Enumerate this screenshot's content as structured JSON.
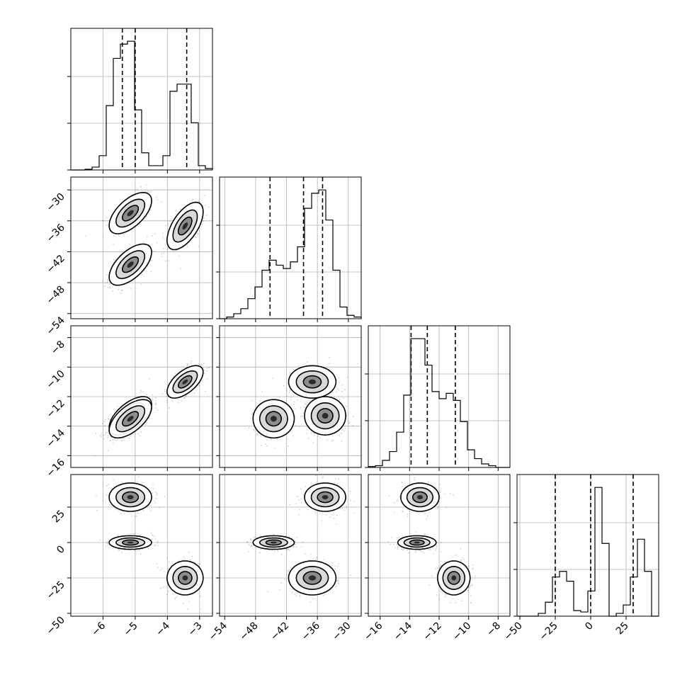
{
  "chart_data": {
    "type": "corner",
    "grid": true,
    "variables": [
      {
        "key": "p0",
        "range": [
          -7.0,
          -2.6
        ],
        "ticks": [
          -6,
          -5,
          -4,
          -3
        ],
        "tick_labels": [
          "−6",
          "−5",
          "−4",
          "−3"
        ],
        "hist_x": [
          -7.0,
          -6.78,
          -6.56,
          -6.34,
          -6.12,
          -5.9,
          -5.68,
          -5.46,
          -5.24,
          -5.02,
          -4.8,
          -4.58,
          -4.36,
          -4.14,
          -3.92,
          -3.7,
          -3.48,
          -3.26,
          -3.04,
          -2.82,
          -2.6
        ],
        "hist_counts": [
          0,
          0,
          0.5,
          2,
          10,
          45,
          78,
          88,
          90,
          42,
          12,
          3,
          3,
          10,
          55,
          60,
          60,
          33,
          3,
          1
        ],
        "quantiles": [
          -5.4,
          -5.0,
          -3.4
        ]
      },
      {
        "key": "p1",
        "range": [
          -55.0,
          -27.5
        ],
        "ticks": [
          -54,
          -48,
          -42,
          -36,
          -30
        ],
        "tick_labels": [
          "−54",
          "−48",
          "−42",
          "−36",
          "−30"
        ],
        "hist_x": [
          -55.0,
          -53.625,
          -52.25,
          -50.875,
          -49.5,
          -48.125,
          -46.75,
          -45.375,
          -44.0,
          -42.625,
          -41.25,
          -39.875,
          -38.5,
          -37.125,
          -35.75,
          -34.375,
          -33.0,
          -31.625,
          -30.25,
          -28.875,
          -27.5
        ],
        "hist_counts": [
          0,
          1,
          3,
          6,
          12,
          19,
          29,
          35,
          32,
          30,
          34,
          43,
          66,
          75,
          77,
          59,
          29,
          7,
          2,
          1
        ],
        "quantiles": [
          -45.2,
          -38.7,
          -35.0
        ]
      },
      {
        "key": "p2",
        "range": [
          -16.8,
          -7.2
        ],
        "ticks": [
          -16,
          -14,
          -12,
          -10,
          -8
        ],
        "tick_labels": [
          "−16",
          "−14",
          "−12",
          "−10",
          "−8"
        ],
        "hist_x": [
          -16.8,
          -16.32,
          -15.84,
          -15.36,
          -14.88,
          -14.4,
          -13.92,
          -13.44,
          -12.96,
          -12.48,
          -12.0,
          -11.52,
          -11.04,
          -10.56,
          -10.08,
          -9.6,
          -9.12,
          -8.64,
          -8.16,
          -7.68,
          -7.2
        ],
        "hist_counts": [
          0.5,
          1,
          4,
          9,
          20,
          41,
          73,
          73,
          58,
          43,
          39,
          42,
          38,
          26,
          10,
          5,
          2,
          1,
          0,
          0
        ],
        "quantiles": [
          -13.9,
          -12.8,
          -10.9
        ]
      },
      {
        "key": "p3",
        "range": [
          -52.0,
          48.0
        ],
        "ticks": [
          -50,
          -25,
          0,
          25
        ],
        "tick_labels": [
          "−50",
          "−25",
          "0",
          "25"
        ],
        "hist_x": [
          -52.0,
          -47.0,
          -42.0,
          -37.0,
          -32.0,
          -27.0,
          -22.0,
          -17.0,
          -12.0,
          -7.0,
          -2.0,
          3.0,
          8.0,
          13.0,
          18.0,
          23.0,
          28.0,
          33.0,
          38.0,
          43.0,
          48.0
        ],
        "hist_counts": [
          0,
          0,
          0,
          2,
          10,
          28,
          32,
          25,
          4,
          3,
          18,
          92,
          52,
          0,
          2,
          8,
          28,
          55,
          32,
          0
        ],
        "quantiles": [
          -25.0,
          0.0,
          30.0
        ]
      }
    ],
    "modes": [
      {
        "mean": [
          -5.15,
          -34.5,
          -13.3,
          32.0
        ],
        "sd": [
          0.33,
          2.0,
          0.65,
          5.0
        ],
        "corr": [
          [
            1.0,
            0.6,
            0.6,
            0.0
          ],
          [
            0.6,
            1.0,
            0.0,
            0.0
          ],
          [
            0.6,
            0.0,
            1.0,
            0.0
          ],
          [
            0.0,
            0.0,
            0.0,
            1.0
          ]
        ]
      },
      {
        "mean": [
          -5.15,
          -44.5,
          -13.5,
          0.0
        ],
        "sd": [
          0.33,
          2.0,
          0.65,
          2.4
        ],
        "corr": [
          [
            1.0,
            0.6,
            0.6,
            0.0
          ],
          [
            0.6,
            1.0,
            0.0,
            0.0
          ],
          [
            0.6,
            0.0,
            1.0,
            0.0
          ],
          [
            0.0,
            0.0,
            0.0,
            1.0
          ]
        ]
      },
      {
        "mean": [
          -3.45,
          -37.0,
          -11.0,
          -25.0
        ],
        "sd": [
          0.28,
          2.3,
          0.55,
          6.0
        ],
        "corr": [
          [
            1.0,
            0.6,
            0.6,
            0.0
          ],
          [
            0.6,
            1.0,
            0.0,
            0.0
          ],
          [
            0.6,
            0.0,
            1.0,
            0.0
          ],
          [
            0.0,
            0.0,
            0.0,
            1.0
          ]
        ]
      }
    ]
  }
}
